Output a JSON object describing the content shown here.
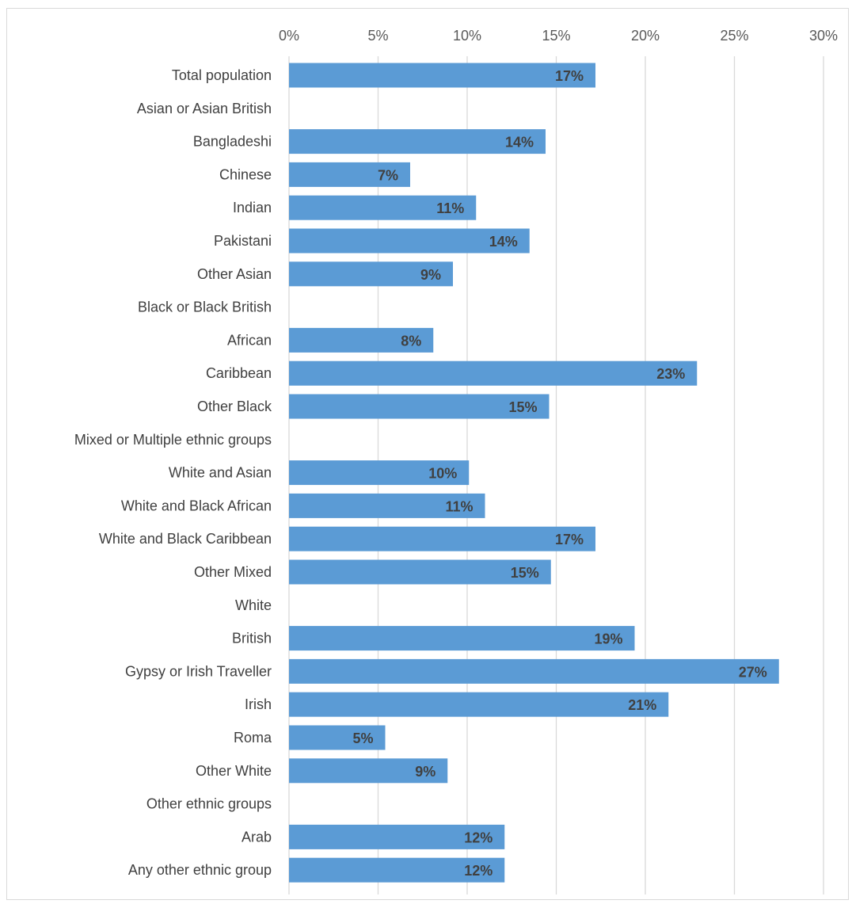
{
  "chart_data": {
    "type": "bar",
    "orientation": "horizontal",
    "title": "",
    "xlabel": "",
    "ylabel": "",
    "xlim": [
      0,
      30
    ],
    "x_ticks": [
      "0%",
      "5%",
      "10%",
      "15%",
      "20%",
      "25%",
      "30%"
    ],
    "x_tick_values": [
      0,
      5,
      10,
      15,
      20,
      25,
      30
    ],
    "x_axis_position": "top",
    "grid": true,
    "legend": "none",
    "bar_color": "#5b9bd5",
    "categories": [
      "Total population",
      "Asian or Asian British",
      "Bangladeshi",
      "Chinese",
      "Indian",
      "Pakistani",
      "Other Asian",
      "Black or Black British",
      "African",
      "Caribbean",
      "Other Black",
      "Mixed or Multiple ethnic groups",
      "White and Asian",
      "White and Black African",
      "White and Black Caribbean",
      "Other Mixed",
      "White",
      "British",
      "Gypsy or Irish Traveller",
      "Irish",
      "Roma",
      "Other White",
      "Other ethnic groups",
      "Arab",
      "Any other ethnic group"
    ],
    "values": [
      17.2,
      null,
      14.4,
      6.8,
      10.5,
      13.5,
      9.2,
      null,
      8.1,
      22.9,
      14.6,
      null,
      10.1,
      11.0,
      17.2,
      14.7,
      null,
      19.4,
      27.5,
      21.3,
      5.4,
      8.9,
      null,
      12.1,
      12.1
    ],
    "data_labels": [
      "17%",
      "",
      "14%",
      "7%",
      "11%",
      "14%",
      "9%",
      "",
      "8%",
      "23%",
      "15%",
      "",
      "10%",
      "11%",
      "17%",
      "15%",
      "",
      "19%",
      "27%",
      "21%",
      "5%",
      "9%",
      "",
      "12%",
      "12%"
    ]
  }
}
